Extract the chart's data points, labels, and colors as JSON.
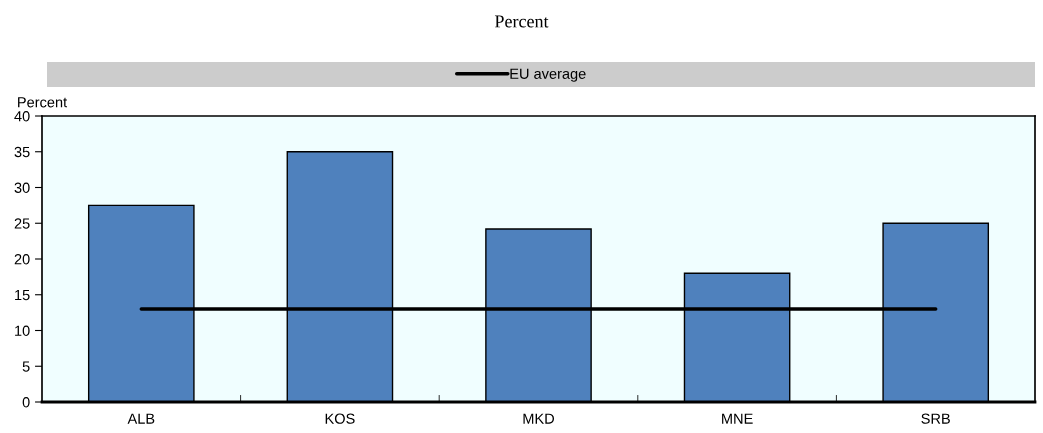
{
  "chart_data": {
    "type": "bar",
    "title": "Percent",
    "ylabel": "Percent",
    "categories": [
      "ALB",
      "KOS",
      "MKD",
      "MNE",
      "SRB"
    ],
    "series": [
      {
        "color": "#4f81bd",
        "values": [
          27.5,
          35,
          24.2,
          18,
          25
        ]
      },
      {
        "type": "line",
        "name": "EU average",
        "color": "#000000",
        "values": [
          13,
          13,
          13,
          13,
          13
        ]
      }
    ],
    "ylim": [
      0,
      40
    ],
    "yticks": [
      0,
      5,
      10,
      15,
      20,
      25,
      30,
      35,
      40
    ],
    "legend": "top",
    "grid": false
  }
}
